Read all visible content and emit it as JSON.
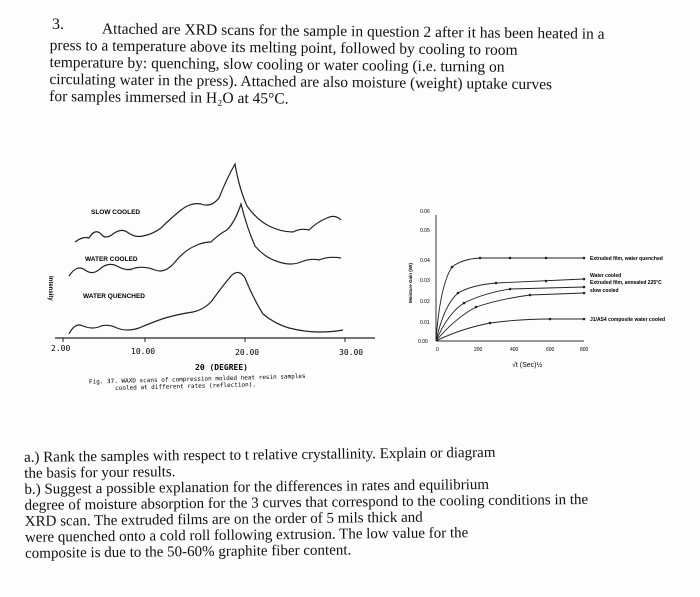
{
  "question_number": "3.",
  "intro_lines": [
    "Attached are XRD scans for the sample in question 2 after it has been heated in a",
    "press to a temperature above its melting point, followed by cooling to room",
    "temperature by: quenching, slow cooling or water cooling (i.e. turning on",
    "circulating water in the press). Attached are also moisture (weight) uptake curves",
    "for samples immersed in H₂O at 45°C."
  ],
  "xrd_figure": {
    "curve_labels": [
      "SLOW COOLED",
      "WATER COOLED",
      "WATER QUENCHED"
    ],
    "y_axis_label": "Intensity",
    "x_ticks": [
      "2.00",
      "10.00",
      "20.00",
      "30.00"
    ],
    "x_axis_label": "2θ (DEGREE)",
    "caption_line1": "Fig. 37. WAXD scans of compression molded neat resin samples",
    "caption_line2": "cooled at different rates (reflection)."
  },
  "uptake_figure": {
    "y_axis_label": "Moisture Gain (Wt)",
    "y_ticks": [
      "0.00",
      "0.01",
      "0.02",
      "0.03",
      "0.04",
      "0.05",
      "0.06"
    ],
    "x_ticks": [
      "0",
      "200",
      "400",
      "600",
      "800"
    ],
    "x_axis_label": "√t (Sec)½",
    "legend": [
      "Extruded film, water quenched",
      "Water cooled",
      "Extruded film, annealed 225°C",
      "slow cooled",
      "J1/AS4 composite water cooled"
    ]
  },
  "questions": [
    "a.) Rank the samples with respect to t relative crystallinity. Explain or diagram",
    "the basis for your results.",
    "b.) Suggest a possible explanation for the differences in rates and equilibrium",
    "degree of moisture absorption for the 3 curves that correspond to the cooling conditions in the",
    "XRD scan. The extruded films are on the order of 5 mils thick and",
    "were quenched onto a cold roll following extrusion. The low value for the",
    "composite is due to the 50-60% graphite fiber content."
  ]
}
